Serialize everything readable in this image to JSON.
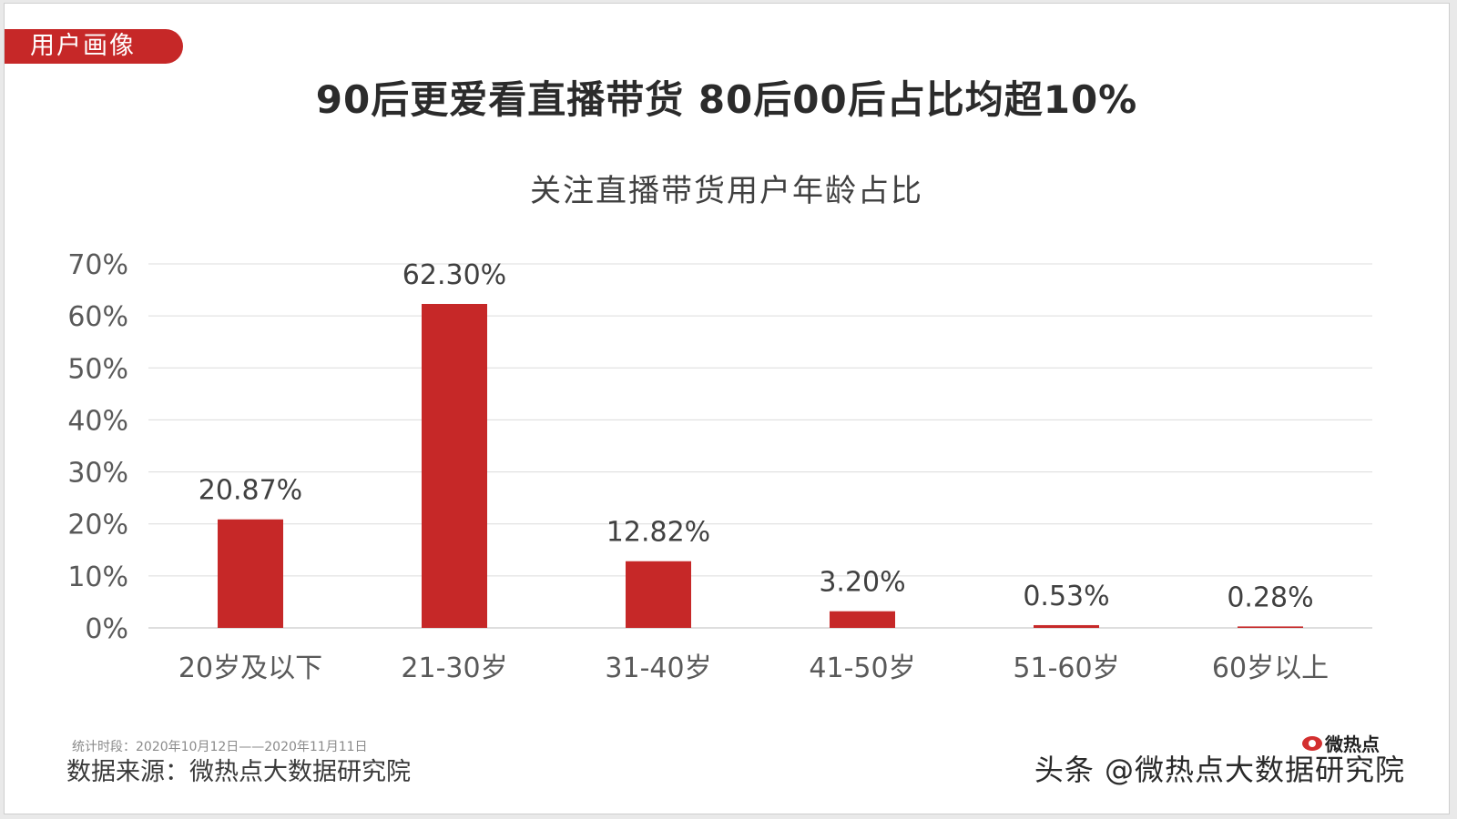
{
  "header": {
    "tag_label": "用户画像",
    "headline": "90后更爱看直播带货 80后00后占比均超10%"
  },
  "chart_data": {
    "type": "bar",
    "title": "关注直播带货用户年龄占比",
    "categories": [
      "20岁及以下",
      "21-30岁",
      "31-40岁",
      "41-50岁",
      "51-60岁",
      "60岁以上"
    ],
    "values": [
      20.87,
      62.3,
      12.82,
      3.2,
      0.53,
      0.28
    ],
    "data_labels": [
      "20.87%",
      "62.30%",
      "12.82%",
      "3.20%",
      "0.53%",
      "0.28%"
    ],
    "y_ticks": [
      "0%",
      "10%",
      "20%",
      "30%",
      "40%",
      "50%",
      "60%",
      "70%"
    ],
    "ylim": [
      0,
      70
    ],
    "grid": true,
    "bar_color": "#c62828"
  },
  "footer": {
    "period": "统计时段：2020年10月12日——2020年11月11日",
    "source": "数据来源：微热点大数据研究院",
    "watermark": "头条 @微热点大数据研究院",
    "logo_text": "微热点"
  }
}
